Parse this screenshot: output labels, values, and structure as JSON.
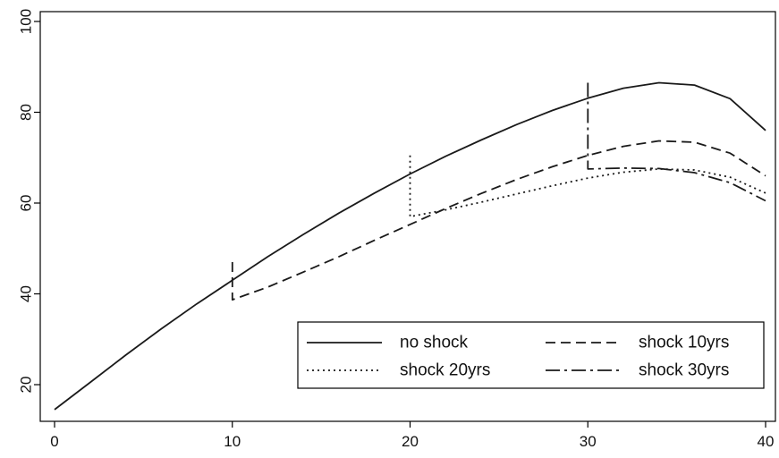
{
  "chart_data": {
    "type": "line",
    "title": "",
    "xlabel": "",
    "ylabel": "",
    "xlim": [
      0,
      40
    ],
    "ylim": [
      14,
      100
    ],
    "x_ticks": [
      0,
      10,
      20,
      30,
      40
    ],
    "x_tick_labels": [
      "0",
      "10",
      "20",
      "30",
      "40"
    ],
    "y_ticks": [
      20,
      40,
      60,
      80,
      100
    ],
    "y_tick_labels": [
      "20",
      "40",
      "60",
      "80",
      "100"
    ],
    "grid": false,
    "legend_position": "bottom-right",
    "series": [
      {
        "name": "no shock",
        "dash": "solid",
        "x": [
          0,
          2,
          4,
          6,
          8,
          10,
          12,
          14,
          16,
          18,
          20,
          22,
          24,
          26,
          28,
          30,
          32,
          34,
          36,
          38,
          40
        ],
        "y": [
          14.5,
          20.5,
          26.5,
          32.3,
          37.8,
          43.0,
          48.2,
          53.1,
          57.8,
          62.2,
          66.4,
          70.3,
          73.9,
          77.3,
          80.4,
          83.1,
          85.3,
          86.5,
          86.0,
          83.0,
          76.0
        ]
      },
      {
        "name": "shock 10yrs",
        "dash": "dashed",
        "x": [
          10,
          10,
          12,
          14,
          16,
          18,
          20,
          22,
          24,
          26,
          28,
          30,
          32,
          34,
          36,
          38,
          40
        ],
        "y": [
          47.0,
          38.7,
          41.5,
          44.8,
          48.2,
          51.8,
          55.3,
          58.8,
          62.1,
          65.2,
          68.0,
          70.5,
          72.5,
          73.7,
          73.4,
          71.0,
          66.0
        ]
      },
      {
        "name": "shock 20yrs",
        "dash": "dotted",
        "x": [
          20,
          20,
          22,
          24,
          26,
          28,
          30,
          32,
          34,
          36,
          38,
          40
        ],
        "y": [
          70.5,
          57.0,
          58.5,
          60.2,
          62.0,
          63.8,
          65.5,
          66.8,
          67.5,
          67.3,
          65.7,
          62.2
        ]
      },
      {
        "name": "shock 30yrs",
        "dash": "dashdot",
        "x": [
          30,
          30,
          32,
          34,
          36,
          38,
          40
        ],
        "y": [
          86.5,
          67.5,
          67.7,
          67.6,
          66.7,
          64.5,
          60.5
        ]
      }
    ]
  }
}
